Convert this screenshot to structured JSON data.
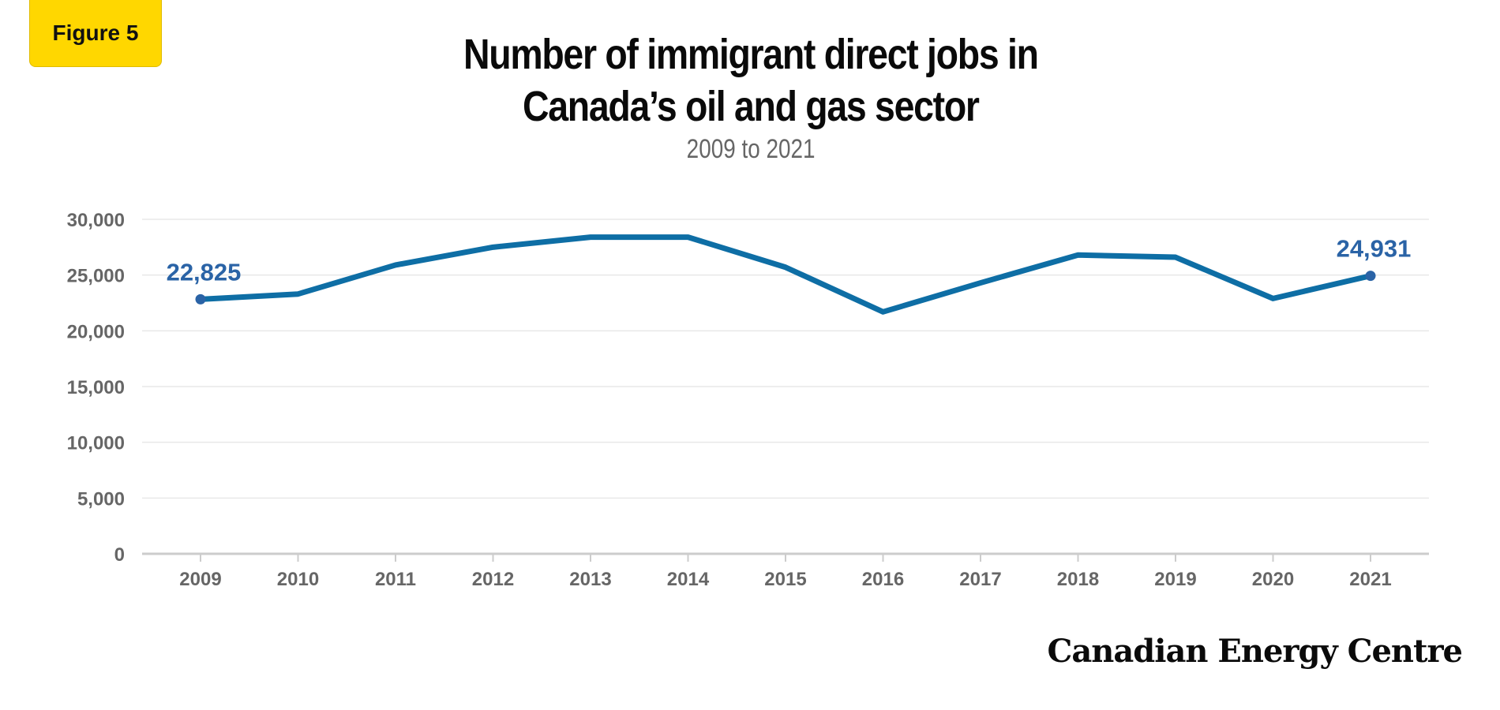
{
  "badge": "Figure 5",
  "brand": "Canadian Energy Centre",
  "colors": {
    "line": "#0e6ea5",
    "label": "#2a63a6",
    "badge": "#ffd700",
    "grid": "#e8e8e8",
    "axis": "#cccccc",
    "tick_text": "#666666"
  },
  "chart_data": {
    "type": "line",
    "title": "Number of immigrant direct jobs in Canada’s oil and gas sector",
    "title_lines": [
      "Number of immigrant direct jobs in",
      "Canada’s oil and gas sector"
    ],
    "subtitle": "2009 to 2021",
    "xlabel": "",
    "ylabel": "",
    "ylim": [
      0,
      30000
    ],
    "yticks": [
      0,
      5000,
      10000,
      15000,
      20000,
      25000,
      30000
    ],
    "ytick_labels": [
      "0",
      "5,000",
      "10,000",
      "15,000",
      "20,000",
      "25,000",
      "30,000"
    ],
    "grid": true,
    "categories": [
      "2009",
      "2010",
      "2011",
      "2012",
      "2013",
      "2014",
      "2015",
      "2016",
      "2017",
      "2018",
      "2019",
      "2020",
      "2021"
    ],
    "series": [
      {
        "values": [
          22825,
          23300,
          25900,
          27500,
          28400,
          28400,
          25700,
          21700,
          24300,
          26800,
          26600,
          22900,
          24931
        ]
      }
    ],
    "data_labels": [
      {
        "index": 0,
        "text": "22,825"
      },
      {
        "index": 12,
        "text": "24,931"
      }
    ]
  }
}
